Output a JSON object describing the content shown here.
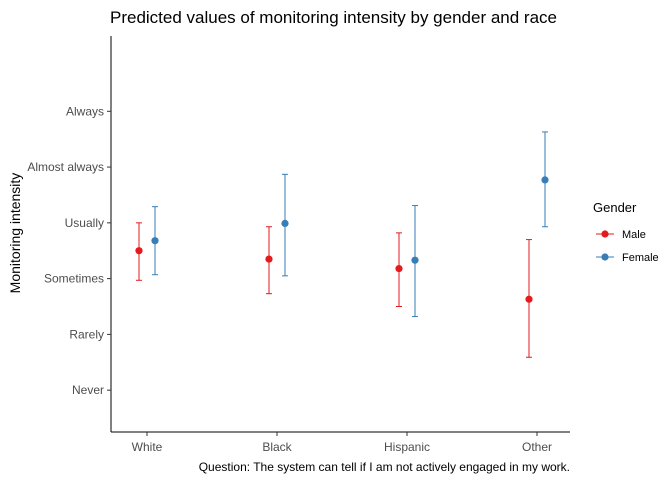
{
  "chart_data": {
    "type": "scatter",
    "title": "Predicted values of monitoring intensity by gender and race",
    "xlabel": "",
    "ylabel": "Monitoring intensity",
    "caption": "Question: The system can tell if I am not actively engaged in my work.",
    "categories": [
      "White",
      "Black",
      "Hispanic",
      "Other"
    ],
    "y_ticks": [
      {
        "value": 1,
        "label": "Never"
      },
      {
        "value": 2,
        "label": "Rarely"
      },
      {
        "value": 3,
        "label": "Sometimes"
      },
      {
        "value": 4,
        "label": "Usually"
      },
      {
        "value": 5,
        "label": "Almost always"
      },
      {
        "value": 6,
        "label": "Always"
      }
    ],
    "ylim": [
      0.25,
      7.35
    ],
    "legend_title": "Gender",
    "legend_position": "right",
    "grid": false,
    "series": [
      {
        "name": "Male",
        "color": "#e41a1c",
        "values": [
          3.5,
          3.35,
          3.18,
          2.63
        ],
        "lower": [
          2.97,
          2.73,
          2.5,
          1.59
        ],
        "upper": [
          4.0,
          3.93,
          3.82,
          3.7
        ]
      },
      {
        "name": "Female",
        "color": "#377eb8",
        "values": [
          3.68,
          3.99,
          3.33,
          4.77
        ],
        "lower": [
          3.07,
          3.05,
          2.32,
          3.93
        ],
        "upper": [
          4.29,
          4.87,
          4.31,
          5.63
        ]
      }
    ]
  }
}
